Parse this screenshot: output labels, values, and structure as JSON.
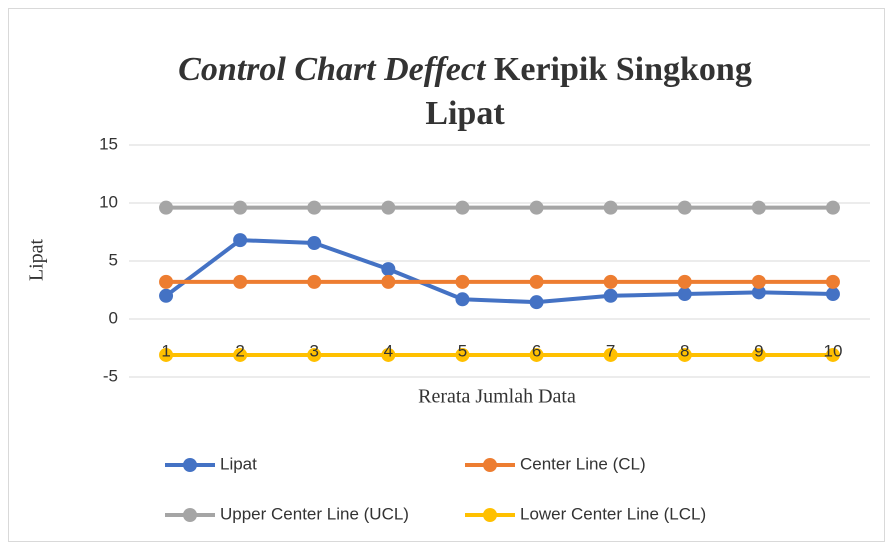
{
  "chart_data": {
    "type": "line",
    "title": [
      "Control Chart Deffect",
      "Keripik Singkong Lipat"
    ],
    "x_label": "Rerata Jumlah Data",
    "y_label": "Lipat",
    "categories": [
      "1",
      "2",
      "3",
      "4",
      "5",
      "6",
      "7",
      "8",
      "9",
      "10"
    ],
    "series": [
      {
        "name": "Lipat",
        "color": "#4472c4",
        "values": [
          2.0,
          6.8,
          6.55,
          4.3,
          1.7,
          1.45,
          2.0,
          2.15,
          2.3,
          2.15
        ]
      },
      {
        "name": "Center Line (CL)",
        "color": "#ed7d31",
        "values": [
          3.2,
          3.2,
          3.2,
          3.2,
          3.2,
          3.2,
          3.2,
          3.2,
          3.2,
          3.2
        ]
      },
      {
        "name": "Upper Center Line (UCL)",
        "color": "#a5a5a5",
        "values": [
          9.6,
          9.6,
          9.6,
          9.6,
          9.6,
          9.6,
          9.6,
          9.6,
          9.6,
          9.6
        ]
      },
      {
        "name": "Lower Center Line (LCL)",
        "color": "#ffc000",
        "values": [
          -3.1,
          -3.1,
          -3.1,
          -3.1,
          -3.1,
          -3.1,
          -3.1,
          -3.1,
          -3.1,
          -3.1
        ]
      }
    ],
    "ylim": [
      -5,
      15
    ],
    "yticks": [
      -5,
      0,
      5,
      10,
      15
    ],
    "grid": true,
    "legend": "bottom"
  }
}
